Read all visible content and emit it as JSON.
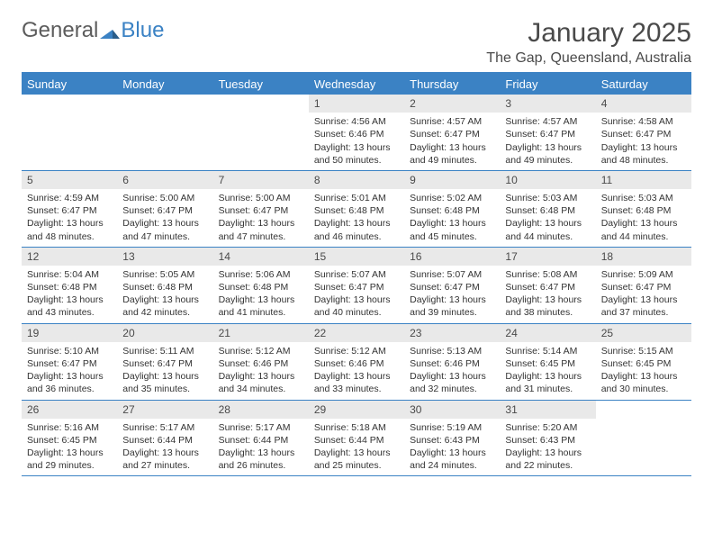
{
  "logo": {
    "text1": "General",
    "text2": "Blue"
  },
  "title": "January 2025",
  "location": "The Gap, Queensland, Australia",
  "colors": {
    "accent": "#3b82c4",
    "daynum_bg": "#e9e9e9",
    "text": "#333333",
    "header_text": "#4a4a4a"
  },
  "day_headers": [
    "Sunday",
    "Monday",
    "Tuesday",
    "Wednesday",
    "Thursday",
    "Friday",
    "Saturday"
  ],
  "weeks": [
    [
      {
        "n": "",
        "sr": "",
        "ss": "",
        "dl": "",
        "dm": ""
      },
      {
        "n": "",
        "sr": "",
        "ss": "",
        "dl": "",
        "dm": ""
      },
      {
        "n": "",
        "sr": "",
        "ss": "",
        "dl": "",
        "dm": ""
      },
      {
        "n": "1",
        "sr": "4:56 AM",
        "ss": "6:46 PM",
        "dl": "13 hours",
        "dm": "50 minutes."
      },
      {
        "n": "2",
        "sr": "4:57 AM",
        "ss": "6:47 PM",
        "dl": "13 hours",
        "dm": "49 minutes."
      },
      {
        "n": "3",
        "sr": "4:57 AM",
        "ss": "6:47 PM",
        "dl": "13 hours",
        "dm": "49 minutes."
      },
      {
        "n": "4",
        "sr": "4:58 AM",
        "ss": "6:47 PM",
        "dl": "13 hours",
        "dm": "48 minutes."
      }
    ],
    [
      {
        "n": "5",
        "sr": "4:59 AM",
        "ss": "6:47 PM",
        "dl": "13 hours",
        "dm": "48 minutes."
      },
      {
        "n": "6",
        "sr": "5:00 AM",
        "ss": "6:47 PM",
        "dl": "13 hours",
        "dm": "47 minutes."
      },
      {
        "n": "7",
        "sr": "5:00 AM",
        "ss": "6:47 PM",
        "dl": "13 hours",
        "dm": "47 minutes."
      },
      {
        "n": "8",
        "sr": "5:01 AM",
        "ss": "6:48 PM",
        "dl": "13 hours",
        "dm": "46 minutes."
      },
      {
        "n": "9",
        "sr": "5:02 AM",
        "ss": "6:48 PM",
        "dl": "13 hours",
        "dm": "45 minutes."
      },
      {
        "n": "10",
        "sr": "5:03 AM",
        "ss": "6:48 PM",
        "dl": "13 hours",
        "dm": "44 minutes."
      },
      {
        "n": "11",
        "sr": "5:03 AM",
        "ss": "6:48 PM",
        "dl": "13 hours",
        "dm": "44 minutes."
      }
    ],
    [
      {
        "n": "12",
        "sr": "5:04 AM",
        "ss": "6:48 PM",
        "dl": "13 hours",
        "dm": "43 minutes."
      },
      {
        "n": "13",
        "sr": "5:05 AM",
        "ss": "6:48 PM",
        "dl": "13 hours",
        "dm": "42 minutes."
      },
      {
        "n": "14",
        "sr": "5:06 AM",
        "ss": "6:48 PM",
        "dl": "13 hours",
        "dm": "41 minutes."
      },
      {
        "n": "15",
        "sr": "5:07 AM",
        "ss": "6:47 PM",
        "dl": "13 hours",
        "dm": "40 minutes."
      },
      {
        "n": "16",
        "sr": "5:07 AM",
        "ss": "6:47 PM",
        "dl": "13 hours",
        "dm": "39 minutes."
      },
      {
        "n": "17",
        "sr": "5:08 AM",
        "ss": "6:47 PM",
        "dl": "13 hours",
        "dm": "38 minutes."
      },
      {
        "n": "18",
        "sr": "5:09 AM",
        "ss": "6:47 PM",
        "dl": "13 hours",
        "dm": "37 minutes."
      }
    ],
    [
      {
        "n": "19",
        "sr": "5:10 AM",
        "ss": "6:47 PM",
        "dl": "13 hours",
        "dm": "36 minutes."
      },
      {
        "n": "20",
        "sr": "5:11 AM",
        "ss": "6:47 PM",
        "dl": "13 hours",
        "dm": "35 minutes."
      },
      {
        "n": "21",
        "sr": "5:12 AM",
        "ss": "6:46 PM",
        "dl": "13 hours",
        "dm": "34 minutes."
      },
      {
        "n": "22",
        "sr": "5:12 AM",
        "ss": "6:46 PM",
        "dl": "13 hours",
        "dm": "33 minutes."
      },
      {
        "n": "23",
        "sr": "5:13 AM",
        "ss": "6:46 PM",
        "dl": "13 hours",
        "dm": "32 minutes."
      },
      {
        "n": "24",
        "sr": "5:14 AM",
        "ss": "6:45 PM",
        "dl": "13 hours",
        "dm": "31 minutes."
      },
      {
        "n": "25",
        "sr": "5:15 AM",
        "ss": "6:45 PM",
        "dl": "13 hours",
        "dm": "30 minutes."
      }
    ],
    [
      {
        "n": "26",
        "sr": "5:16 AM",
        "ss": "6:45 PM",
        "dl": "13 hours",
        "dm": "29 minutes."
      },
      {
        "n": "27",
        "sr": "5:17 AM",
        "ss": "6:44 PM",
        "dl": "13 hours",
        "dm": "27 minutes."
      },
      {
        "n": "28",
        "sr": "5:17 AM",
        "ss": "6:44 PM",
        "dl": "13 hours",
        "dm": "26 minutes."
      },
      {
        "n": "29",
        "sr": "5:18 AM",
        "ss": "6:44 PM",
        "dl": "13 hours",
        "dm": "25 minutes."
      },
      {
        "n": "30",
        "sr": "5:19 AM",
        "ss": "6:43 PM",
        "dl": "13 hours",
        "dm": "24 minutes."
      },
      {
        "n": "31",
        "sr": "5:20 AM",
        "ss": "6:43 PM",
        "dl": "13 hours",
        "dm": "22 minutes."
      },
      {
        "n": "",
        "sr": "",
        "ss": "",
        "dl": "",
        "dm": ""
      }
    ]
  ],
  "labels": {
    "sunrise": "Sunrise:",
    "sunset": "Sunset:",
    "daylight": "Daylight:",
    "and": "and"
  }
}
